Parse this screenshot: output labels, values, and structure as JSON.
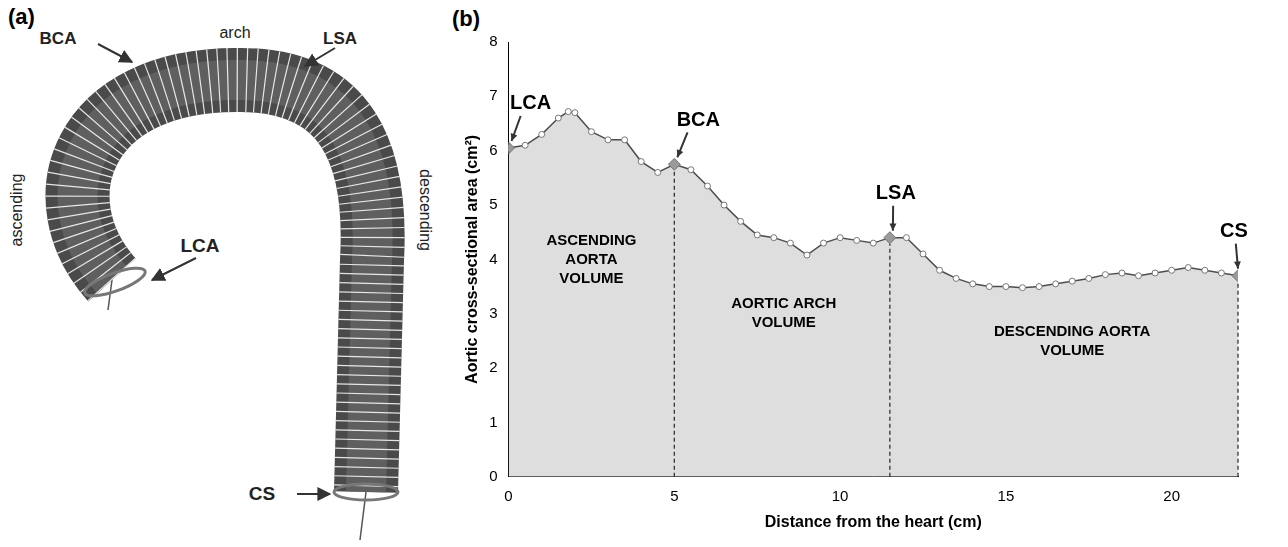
{
  "diagram": {
    "panel": "(a)",
    "labels": [
      "BCA",
      "arch",
      "LSA",
      "ascending",
      "descending",
      "LCA",
      "CS"
    ]
  },
  "chart_data": {
    "type": "area",
    "panel": "(b)",
    "x_label": "Distance from the heart (cm)",
    "y_label": "Aortic cross-sectional area (cm²)",
    "x": [
      0,
      0.5,
      1,
      1.5,
      1.8,
      2,
      2.5,
      3,
      3.5,
      4,
      4.5,
      5,
      5.5,
      6,
      6.5,
      7,
      7.5,
      8,
      8.5,
      9,
      9.5,
      10,
      10.5,
      11,
      11.5,
      12,
      12.5,
      13,
      13.5,
      14,
      14.5,
      15,
      15.5,
      16,
      16.5,
      17,
      17.5,
      18,
      18.5,
      19,
      19.5,
      20,
      20.5,
      21,
      21.5,
      22
    ],
    "values": [
      6.05,
      6.1,
      6.3,
      6.6,
      6.72,
      6.7,
      6.35,
      6.2,
      6.2,
      5.8,
      5.6,
      5.75,
      5.65,
      5.35,
      5.0,
      4.7,
      4.45,
      4.4,
      4.3,
      4.08,
      4.3,
      4.4,
      4.35,
      4.3,
      4.4,
      4.4,
      4.1,
      3.8,
      3.65,
      3.55,
      3.5,
      3.5,
      3.48,
      3.5,
      3.55,
      3.6,
      3.65,
      3.72,
      3.75,
      3.7,
      3.75,
      3.8,
      3.85,
      3.8,
      3.75,
      3.7
    ],
    "color": "#4d4d4d",
    "marker": "circle",
    "grid": false,
    "xlim": [
      0,
      22
    ],
    "xticks": [
      0,
      5,
      10,
      15,
      20
    ],
    "ylim": [
      0,
      8
    ],
    "yticks": [
      0,
      1,
      2,
      3,
      4,
      5,
      6,
      7,
      8
    ],
    "annotations": [
      {
        "text": "LCA",
        "x": 0,
        "y": 6.05
      },
      {
        "text": "BCA",
        "x": 5,
        "y": 5.75
      },
      {
        "text": "LSA",
        "x": 11.5,
        "y": 4.4
      },
      {
        "text": "CS",
        "x": 22,
        "y": 3.7
      }
    ],
    "dividers": [
      5,
      11.5,
      22
    ],
    "regions": [
      {
        "lines": [
          "ASCENDING",
          "AORTA",
          "VOLUME"
        ],
        "x": 2.5,
        "y": 4.0
      },
      {
        "lines": [
          "AORTIC ARCH",
          "VOLUME"
        ],
        "x": 8.3,
        "y": 3.0
      },
      {
        "lines": [
          "DESCENDING AORTA",
          "VOLUME"
        ],
        "x": 17,
        "y": 2.5
      }
    ]
  }
}
